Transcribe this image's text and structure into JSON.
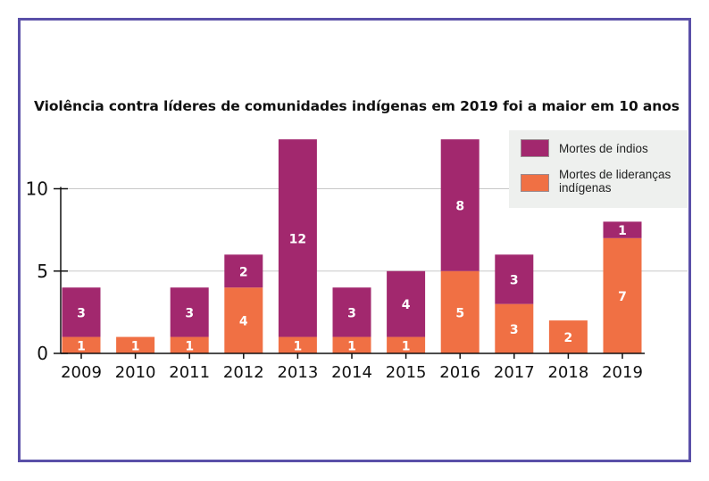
{
  "chart_data": {
    "type": "bar",
    "stacked": true,
    "title": "Violência contra líderes de comunidades indígenas em 2019 foi a maior em 10 anos",
    "xlabel": "",
    "ylabel": "",
    "categories": [
      "2009",
      "2010",
      "2011",
      "2012",
      "2013",
      "2014",
      "2015",
      "2016",
      "2017",
      "2018",
      "2019"
    ],
    "series": [
      {
        "name": "Mortes de lideranças indígenas",
        "color": "#f07044",
        "values": [
          1,
          1,
          1,
          4,
          1,
          1,
          1,
          5,
          3,
          2,
          7
        ]
      },
      {
        "name": "Mortes de índios",
        "color": "#a2286e",
        "values": [
          3,
          0,
          3,
          2,
          12,
          3,
          4,
          8,
          3,
          0,
          1
        ]
      }
    ],
    "yticks": [
      0,
      5,
      10
    ],
    "ylim": [
      0,
      13
    ],
    "grid": true,
    "legend": {
      "placement": "top-right",
      "entries": [
        {
          "label_lines": [
            "Mortes de índios"
          ],
          "color": "#a2286e"
        },
        {
          "label_lines": [
            "Mortes de lideranças",
            "indígenas"
          ],
          "color": "#f07044"
        }
      ]
    },
    "frame_color": "#5a50a8",
    "label_color": "#ffffff"
  }
}
